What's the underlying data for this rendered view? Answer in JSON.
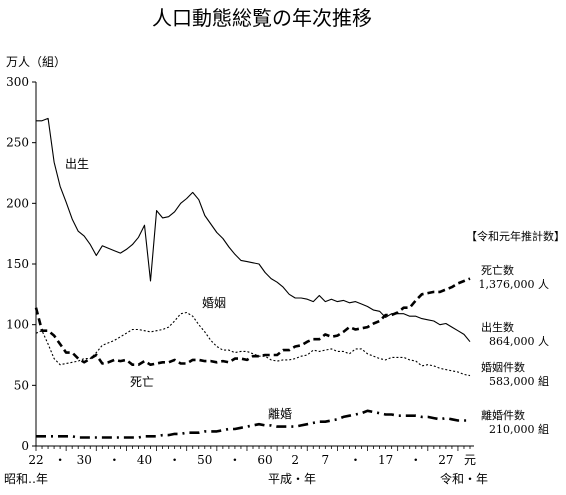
{
  "chart_data": {
    "type": "line",
    "title": "人口動態総覧の年次推移",
    "ylabel": "万人（組）",
    "ylim": [
      0,
      300
    ],
    "yticks": [
      0,
      50,
      100,
      150,
      200,
      250,
      300
    ],
    "grid": false,
    "x_range": [
      1947,
      2019
    ],
    "xticks": [
      {
        "year": 1947,
        "label": "22"
      },
      {
        "year": 1951,
        "label": "・"
      },
      {
        "year": 1955,
        "label": "30"
      },
      {
        "year": 1960,
        "label": "・"
      },
      {
        "year": 1965,
        "label": "40"
      },
      {
        "year": 1970,
        "label": "・"
      },
      {
        "year": 1975,
        "label": "50"
      },
      {
        "year": 1980,
        "label": "・"
      },
      {
        "year": 1985,
        "label": "60"
      },
      {
        "year": 1990,
        "label": "2"
      },
      {
        "year": 1995,
        "label": "7"
      },
      {
        "year": 2000,
        "label": "・"
      },
      {
        "year": 2005,
        "label": "17"
      },
      {
        "year": 2010,
        "label": "・"
      },
      {
        "year": 2015,
        "label": "27"
      },
      {
        "year": 2019,
        "label": "元"
      }
    ],
    "era_labels": [
      "昭和‥年",
      "平成・年",
      "令和・年"
    ],
    "legend_title": "【令和元年推計数】",
    "series": [
      {
        "name": "出生",
        "style": "solid",
        "x": [
          1947,
          1948,
          1949,
          1950,
          1951,
          1952,
          1953,
          1954,
          1955,
          1956,
          1957,
          1958,
          1959,
          1960,
          1961,
          1962,
          1963,
          1964,
          1965,
          1966,
          1967,
          1968,
          1969,
          1970,
          1971,
          1972,
          1973,
          1974,
          1975,
          1976,
          1977,
          1978,
          1979,
          1980,
          1981,
          1982,
          1983,
          1984,
          1985,
          1986,
          1987,
          1988,
          1989,
          1990,
          1991,
          1992,
          1993,
          1994,
          1995,
          1996,
          1997,
          1998,
          1999,
          2000,
          2001,
          2002,
          2003,
          2004,
          2005,
          2006,
          2007,
          2008,
          2009,
          2010,
          2011,
          2012,
          2013,
          2014,
          2015,
          2016,
          2017,
          2018,
          2019
        ],
        "values": [
          268,
          268,
          270,
          234,
          214,
          201,
          187,
          177,
          173,
          166,
          157,
          165,
          163,
          161,
          159,
          162,
          166,
          172,
          182,
          136,
          194,
          188,
          189,
          193,
          200,
          204,
          209,
          203,
          190,
          183,
          176,
          171,
          164,
          158,
          153,
          152,
          151,
          150,
          143,
          138,
          135,
          131,
          125,
          122,
          122,
          121,
          119,
          124,
          119,
          121,
          119,
          120,
          118,
          119,
          117,
          115,
          112,
          111,
          106,
          109,
          109,
          109,
          107,
          107,
          105,
          104,
          103,
          100,
          101,
          98,
          95,
          92,
          86
        ],
        "label": "出生",
        "side_label": "出生数",
        "side_value": "864,000 人"
      },
      {
        "name": "死亡",
        "style": "dashed-bold",
        "x": [
          1947,
          1948,
          1949,
          1950,
          1951,
          1952,
          1953,
          1954,
          1955,
          1956,
          1957,
          1958,
          1959,
          1960,
          1961,
          1962,
          1963,
          1964,
          1965,
          1966,
          1967,
          1968,
          1969,
          1970,
          1971,
          1972,
          1973,
          1974,
          1975,
          1976,
          1977,
          1978,
          1979,
          1980,
          1981,
          1982,
          1983,
          1984,
          1985,
          1986,
          1987,
          1988,
          1989,
          1990,
          1991,
          1992,
          1993,
          1994,
          1995,
          1996,
          1997,
          1998,
          1999,
          2000,
          2001,
          2002,
          2003,
          2004,
          2005,
          2006,
          2007,
          2008,
          2009,
          2010,
          2011,
          2012,
          2013,
          2014,
          2015,
          2016,
          2017,
          2018,
          2019
        ],
        "values": [
          114,
          95,
          95,
          91,
          84,
          77,
          77,
          72,
          69,
          72,
          75,
          68,
          69,
          71,
          70,
          71,
          67,
          67,
          70,
          67,
          68,
          69,
          69,
          71,
          68,
          68,
          71,
          71,
          70,
          70,
          69,
          70,
          69,
          72,
          72,
          71,
          74,
          74,
          75,
          75,
          75,
          79,
          79,
          82,
          83,
          86,
          88,
          88,
          92,
          90,
          91,
          94,
          98,
          96,
          97,
          98,
          101,
          103,
          108,
          108,
          110,
          114,
          114,
          120,
          125,
          126,
          127,
          127,
          129,
          131,
          134,
          136,
          138
        ],
        "label": "死亡",
        "side_label": "死亡数",
        "side_value": "1,376,000 人"
      },
      {
        "name": "婚姻",
        "style": "dotted",
        "x": [
          1947,
          1948,
          1949,
          1950,
          1951,
          1952,
          1953,
          1954,
          1955,
          1956,
          1957,
          1958,
          1959,
          1960,
          1961,
          1962,
          1963,
          1964,
          1965,
          1966,
          1967,
          1968,
          1969,
          1970,
          1971,
          1972,
          1973,
          1974,
          1975,
          1976,
          1977,
          1978,
          1979,
          1980,
          1981,
          1982,
          1983,
          1984,
          1985,
          1986,
          1987,
          1988,
          1989,
          1990,
          1991,
          1992,
          1993,
          1994,
          1995,
          1996,
          1997,
          1998,
          1999,
          2000,
          2001,
          2002,
          2003,
          2004,
          2005,
          2006,
          2007,
          2008,
          2009,
          2010,
          2011,
          2012,
          2013,
          2014,
          2015,
          2016,
          2017,
          2018,
          2019
        ],
        "values": [
          93,
          95,
          84,
          72,
          67,
          68,
          69,
          70,
          72,
          72,
          77,
          83,
          85,
          87,
          90,
          93,
          96,
          96,
          95,
          94,
          95,
          96,
          98,
          103,
          109,
          110,
          107,
          100,
          94,
          87,
          82,
          79,
          79,
          77,
          78,
          78,
          76,
          74,
          74,
          71,
          70,
          71,
          71,
          72,
          74,
          75,
          79,
          78,
          79,
          80,
          78,
          78,
          76,
          80,
          80,
          76,
          74,
          72,
          71,
          73,
          73,
          73,
          71,
          70,
          66,
          67,
          66,
          64,
          63,
          62,
          61,
          59,
          58
        ],
        "label": "婚姻",
        "side_label": "婚姻件数",
        "side_value": "583,000 組"
      },
      {
        "name": "離婚",
        "style": "dash-dot-bold",
        "x": [
          1947,
          1948,
          1949,
          1950,
          1951,
          1952,
          1953,
          1954,
          1955,
          1956,
          1957,
          1958,
          1959,
          1960,
          1961,
          1962,
          1963,
          1964,
          1965,
          1966,
          1967,
          1968,
          1969,
          1970,
          1971,
          1972,
          1973,
          1974,
          1975,
          1976,
          1977,
          1978,
          1979,
          1980,
          1981,
          1982,
          1983,
          1984,
          1985,
          1986,
          1987,
          1988,
          1989,
          1990,
          1991,
          1992,
          1993,
          1994,
          1995,
          1996,
          1997,
          1998,
          1999,
          2000,
          2001,
          2002,
          2003,
          2004,
          2005,
          2006,
          2007,
          2008,
          2009,
          2010,
          2011,
          2012,
          2013,
          2014,
          2015,
          2016,
          2017,
          2018,
          2019
        ],
        "values": [
          8,
          8,
          8,
          8,
          8,
          8,
          8,
          7,
          7,
          7,
          7,
          7,
          7,
          7,
          7,
          7,
          7,
          7,
          8,
          8,
          8,
          9,
          9,
          10,
          10,
          11,
          11,
          11,
          12,
          12,
          12,
          13,
          14,
          14,
          15,
          16,
          17,
          18,
          17,
          17,
          16,
          16,
          16,
          16,
          17,
          18,
          19,
          20,
          20,
          21,
          22,
          24,
          25,
          26,
          27,
          29,
          28,
          27,
          26,
          26,
          25,
          25,
          25,
          25,
          24,
          24,
          23,
          22,
          23,
          22,
          21,
          21,
          21
        ],
        "label": "離婚",
        "side_label": "離婚件数",
        "side_value": "210,000 組"
      }
    ]
  }
}
